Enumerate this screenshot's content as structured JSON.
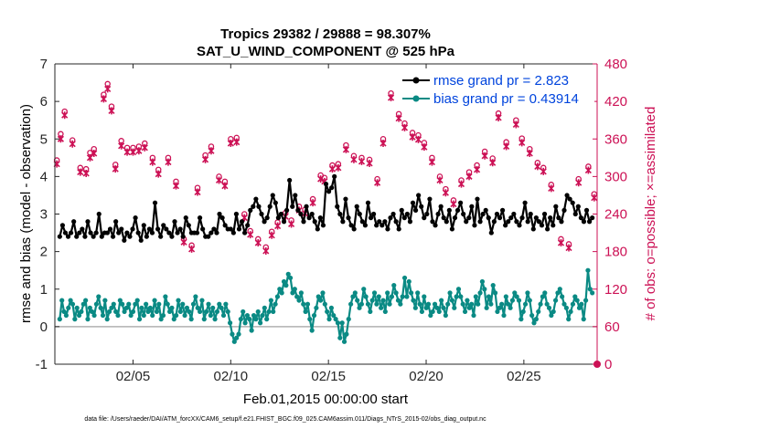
{
  "chart_data": {
    "type": "line",
    "title": "Tropics 29382 / 29888 = 98.307%",
    "subtitle": "SAT_U_WIND_COMPONENT @ 525 hPa",
    "xlabel": "Feb.01,2015 00:00:00 start",
    "ylabel_left": "rmse and bias (model - observation)",
    "ylabel_right": "# of obs: o=possible; ×=assimilated",
    "footer": "data file: /Users/raeder/DAI/ATM_forcXX/CAM6_setup/f.e21.FHIST_BGC.f09_025.CAM6assim.011/Diags_NTrS_2015-02/obs_diag_output.nc",
    "xlim": [
      1,
      28.75
    ],
    "ylim_left": [
      -1,
      7
    ],
    "ylim_right": [
      0,
      480
    ],
    "xticks": [
      5,
      10,
      15,
      20,
      25
    ],
    "xtick_labels": [
      "02/05",
      "02/10",
      "02/15",
      "02/20",
      "02/25"
    ],
    "yticks_left": [
      -1,
      0,
      1,
      2,
      3,
      4,
      5,
      6,
      7
    ],
    "yticks_right": [
      0,
      60,
      120,
      180,
      240,
      300,
      360,
      420,
      480
    ],
    "grid": false,
    "legend_position": "top-right",
    "colors": {
      "rmse": "#000000",
      "bias": "#0a8a84",
      "obs": "#cc1155",
      "axis_right": "#cc1155",
      "zero_line": "#b0b0b0",
      "legend_text": "#0044dd"
    },
    "series": [
      {
        "name": "rmse grand pr = 2.823",
        "values": [
          2.4,
          2.7,
          2.5,
          2.4,
          2.5,
          2.8,
          2.4,
          2.5,
          2.6,
          2.4,
          2.8,
          2.5,
          2.4,
          2.5,
          3.0,
          2.4,
          2.5,
          2.5,
          2.6,
          2.4,
          2.8,
          2.5,
          2.6,
          2.3,
          2.5,
          2.4,
          2.6,
          2.9,
          2.5,
          2.3,
          2.7,
          2.4,
          2.6,
          2.5,
          3.3,
          2.6,
          2.4,
          2.7,
          2.6,
          2.5,
          2.4,
          2.8,
          2.5,
          2.6,
          2.4,
          2.9,
          2.7,
          2.5,
          2.5,
          2.5,
          2.9,
          2.6,
          2.4,
          2.4,
          2.5,
          2.6,
          2.5,
          3.0,
          2.9,
          2.7,
          2.6,
          2.6,
          2.5,
          3.0,
          2.6,
          2.8,
          2.5,
          2.7,
          3.1,
          3.2,
          3.4,
          3.2,
          3.0,
          2.8,
          2.9,
          3.2,
          3.5,
          3.3,
          2.9,
          3.0,
          2.8,
          3.1,
          3.9,
          3.2,
          3.5,
          3.1,
          3.0,
          2.8,
          3.2,
          2.9,
          3.0,
          2.8,
          2.6,
          2.9,
          2.7,
          3.8,
          3.6,
          3.7,
          4.0,
          3.2,
          3.0,
          2.8,
          3.4,
          2.9,
          2.7,
          2.6,
          3.2,
          3.0,
          2.8,
          2.7,
          3.3,
          2.9,
          3.0,
          2.7,
          2.8,
          2.7,
          2.8,
          2.6,
          2.9,
          3.0,
          2.8,
          2.6,
          3.1,
          2.9,
          3.0,
          2.8,
          3.3,
          3.1,
          3.5,
          3.2,
          2.9,
          3.0,
          3.4,
          2.8,
          2.7,
          3.0,
          3.2,
          2.9,
          2.8,
          3.1,
          2.6,
          2.9,
          3.1,
          3.3,
          3.0,
          2.8,
          2.9,
          3.2,
          2.7,
          3.4,
          2.8,
          3.0,
          3.1,
          2.9,
          2.5,
          2.8,
          3.0,
          2.9,
          3.1,
          2.7,
          2.8,
          2.9,
          3.0,
          2.8,
          2.7,
          2.9,
          3.3,
          2.8,
          3.0,
          2.6,
          2.9,
          2.8,
          2.7,
          3.0,
          2.6,
          2.9,
          2.7,
          3.2,
          2.9,
          2.8,
          3.1,
          3.5,
          3.4,
          3.3,
          3.0,
          3.2,
          2.9,
          2.8,
          3.1,
          2.8,
          2.9
        ]
      },
      {
        "name": "bias grand pr = 0.43914",
        "values": [
          0.2,
          0.7,
          0.4,
          0.3,
          0.5,
          0.7,
          0.6,
          0.2,
          0.5,
          0.3,
          0.4,
          0.6,
          0.7,
          0.2,
          0.5,
          0.4,
          0.3,
          0.6,
          0.8,
          0.5,
          0.3,
          0.7,
          0.2,
          0.4,
          0.5,
          0.6,
          0.4,
          0.3,
          0.7,
          0.6,
          0.4,
          0.5,
          0.6,
          0.3,
          0.4,
          0.6,
          0.7,
          0.2,
          0.5,
          0.3,
          0.6,
          0.4,
          0.5,
          0.3,
          0.7,
          0.4,
          0.6,
          0.2,
          0.3,
          0.8,
          0.6,
          0.4,
          0.5,
          0.2,
          0.3,
          0.7,
          0.4,
          0.6,
          0.3,
          0.5,
          0.4,
          0.2,
          0.6,
          0.8,
          0.5,
          0.4,
          0.7,
          0.2,
          0.4,
          0.6,
          0.3,
          0.5,
          0.2,
          0.4,
          0.6,
          0.5,
          0.3,
          0.6,
          0.4,
          0.1,
          -0.2,
          -0.4,
          -0.3,
          -0.2,
          0.2,
          0.4,
          0.1,
          0.3,
          0.2,
          -0.1,
          0.3,
          0.2,
          0.4,
          0.1,
          0.3,
          0.5,
          0.2,
          0.4,
          0.7,
          0.4,
          0.6,
          0.8,
          1.0,
          0.9,
          1.2,
          1.1,
          1.4,
          1.3,
          0.9,
          1.0,
          0.8,
          0.7,
          0.9,
          0.6,
          0.4,
          0.6,
          0.2,
          -0.1,
          0.3,
          0.5,
          0.8,
          0.7,
          0.9,
          0.6,
          0.4,
          0.2,
          0.5,
          0.3,
          0.2,
          0.1,
          -0.3,
          0.1,
          -0.4,
          -0.2,
          0.2,
          0.6,
          0.8,
          0.9,
          0.7,
          0.5,
          0.6,
          1.0,
          0.8,
          0.6,
          0.4,
          0.7,
          0.9,
          0.6,
          0.8,
          0.5,
          0.7,
          0.4,
          0.9,
          0.6,
          0.8,
          1.1,
          0.9,
          0.7,
          0.6,
          0.8,
          1.3,
          0.8,
          1.2,
          0.9,
          0.7,
          0.5,
          0.9,
          0.6,
          0.4,
          0.8,
          0.5,
          0.6,
          0.3,
          0.4,
          0.6,
          0.5,
          0.4,
          0.7,
          0.5,
          0.3,
          0.6,
          0.9,
          0.7,
          0.5,
          0.8,
          1.0,
          0.8,
          0.6,
          0.4,
          0.7,
          0.5,
          0.6,
          0.3,
          0.8,
          0.6,
          0.9,
          1.2,
          1.0,
          0.5,
          0.8,
          0.6,
          1.1,
          0.9,
          0.4,
          0.5,
          0.6,
          0.3,
          0.8,
          0.6,
          0.5,
          0.7,
          0.9,
          0.8,
          0.7,
          0.2,
          0.4,
          0.6,
          0.9,
          0.7,
          0.3,
          0.1,
          0.2,
          0.4,
          0.6,
          0.8,
          0.9,
          0.6,
          0.5,
          0.3,
          0.4,
          0.7,
          0.9,
          1.0,
          0.8,
          0.6,
          0.5,
          0.2,
          0.4,
          0.6,
          0.8,
          0.7,
          0.5,
          0.6,
          0.2,
          0.7,
          1.5,
          1.0,
          0.9
        ]
      }
    ],
    "obs_possible": [
      [
        1.1,
        326
      ],
      [
        1.3,
        368
      ],
      [
        1.5,
        404
      ],
      [
        1.9,
        358
      ],
      [
        2.3,
        314
      ],
      [
        2.6,
        312
      ],
      [
        2.8,
        338
      ],
      [
        3.0,
        344
      ],
      [
        3.5,
        431
      ],
      [
        3.7,
        448
      ],
      [
        3.9,
        412
      ],
      [
        4.1,
        319
      ],
      [
        4.4,
        357
      ],
      [
        4.7,
        346
      ],
      [
        5.0,
        346
      ],
      [
        5.3,
        348
      ],
      [
        5.6,
        353
      ],
      [
        6.0,
        330
      ],
      [
        6.3,
        311
      ],
      [
        6.8,
        330
      ],
      [
        7.2,
        292
      ],
      [
        7.6,
        200
      ],
      [
        8.0,
        190
      ],
      [
        8.3,
        282
      ],
      [
        8.7,
        334
      ],
      [
        9.0,
        348
      ],
      [
        9.4,
        300
      ],
      [
        9.7,
        292
      ],
      [
        10.0,
        360
      ],
      [
        10.3,
        362
      ],
      [
        10.7,
        240
      ],
      [
        11.0,
        213
      ],
      [
        11.4,
        200
      ],
      [
        11.8,
        187
      ],
      [
        12.1,
        212
      ],
      [
        12.4,
        227
      ],
      [
        12.8,
        242
      ],
      [
        13.1,
        230
      ],
      [
        13.5,
        252
      ],
      [
        13.8,
        247
      ],
      [
        14.2,
        264
      ],
      [
        14.6,
        302
      ],
      [
        14.8,
        298
      ],
      [
        15.2,
        318
      ],
      [
        15.5,
        320
      ],
      [
        15.9,
        350
      ],
      [
        16.3,
        333
      ],
      [
        16.7,
        330
      ],
      [
        17.1,
        327
      ],
      [
        17.5,
        296
      ],
      [
        17.8,
        360
      ],
      [
        18.2,
        433
      ],
      [
        18.6,
        400
      ],
      [
        18.9,
        385
      ],
      [
        19.3,
        370
      ],
      [
        19.6,
        366
      ],
      [
        19.9,
        354
      ],
      [
        20.3,
        330
      ],
      [
        20.7,
        300
      ],
      [
        21.0,
        280
      ],
      [
        21.4,
        262
      ],
      [
        21.8,
        294
      ],
      [
        22.2,
        307
      ],
      [
        22.6,
        318
      ],
      [
        23.0,
        340
      ],
      [
        23.4,
        329
      ],
      [
        23.7,
        401
      ],
      [
        24.1,
        355
      ],
      [
        24.6,
        390
      ],
      [
        24.9,
        361
      ],
      [
        25.3,
        344
      ],
      [
        25.7,
        322
      ],
      [
        26.0,
        314
      ],
      [
        26.4,
        287
      ],
      [
        26.9,
        200
      ],
      [
        27.3,
        192
      ],
      [
        27.8,
        296
      ],
      [
        28.3,
        316
      ],
      [
        28.6,
        272
      ]
    ],
    "obs_assimilated": [
      [
        1.1,
        320
      ],
      [
        1.3,
        360
      ],
      [
        1.5,
        398
      ],
      [
        1.9,
        352
      ],
      [
        2.3,
        307
      ],
      [
        2.6,
        305
      ],
      [
        2.8,
        330
      ],
      [
        3.0,
        337
      ],
      [
        3.5,
        424
      ],
      [
        3.7,
        440
      ],
      [
        3.9,
        405
      ],
      [
        4.1,
        312
      ],
      [
        4.4,
        349
      ],
      [
        4.7,
        339
      ],
      [
        5.0,
        339
      ],
      [
        5.3,
        341
      ],
      [
        5.6,
        346
      ],
      [
        6.0,
        323
      ],
      [
        6.3,
        304
      ],
      [
        6.8,
        323
      ],
      [
        7.2,
        285
      ],
      [
        7.6,
        195
      ],
      [
        8.0,
        184
      ],
      [
        8.3,
        275
      ],
      [
        8.7,
        327
      ],
      [
        9.0,
        341
      ],
      [
        9.4,
        294
      ],
      [
        9.7,
        285
      ],
      [
        10.0,
        353
      ],
      [
        10.3,
        355
      ],
      [
        10.7,
        234
      ],
      [
        11.0,
        207
      ],
      [
        11.4,
        194
      ],
      [
        11.8,
        181
      ],
      [
        12.1,
        206
      ],
      [
        12.4,
        221
      ],
      [
        12.8,
        236
      ],
      [
        13.1,
        224
      ],
      [
        13.5,
        246
      ],
      [
        13.8,
        241
      ],
      [
        14.2,
        258
      ],
      [
        14.6,
        296
      ],
      [
        14.8,
        292
      ],
      [
        15.2,
        312
      ],
      [
        15.5,
        314
      ],
      [
        15.9,
        343
      ],
      [
        16.3,
        327
      ],
      [
        16.7,
        324
      ],
      [
        17.1,
        321
      ],
      [
        17.5,
        290
      ],
      [
        17.8,
        353
      ],
      [
        18.2,
        426
      ],
      [
        18.6,
        393
      ],
      [
        18.9,
        378
      ],
      [
        19.3,
        363
      ],
      [
        19.6,
        359
      ],
      [
        19.9,
        347
      ],
      [
        20.3,
        323
      ],
      [
        20.7,
        294
      ],
      [
        21.0,
        274
      ],
      [
        21.4,
        256
      ],
      [
        21.8,
        288
      ],
      [
        22.2,
        300
      ],
      [
        22.6,
        311
      ],
      [
        23.0,
        333
      ],
      [
        23.4,
        322
      ],
      [
        23.7,
        394
      ],
      [
        24.1,
        348
      ],
      [
        24.6,
        383
      ],
      [
        24.9,
        354
      ],
      [
        25.3,
        337
      ],
      [
        25.7,
        316
      ],
      [
        26.0,
        308
      ],
      [
        26.4,
        281
      ],
      [
        26.9,
        194
      ],
      [
        27.3,
        186
      ],
      [
        27.8,
        290
      ],
      [
        28.3,
        310
      ],
      [
        28.6,
        266
      ]
    ]
  }
}
